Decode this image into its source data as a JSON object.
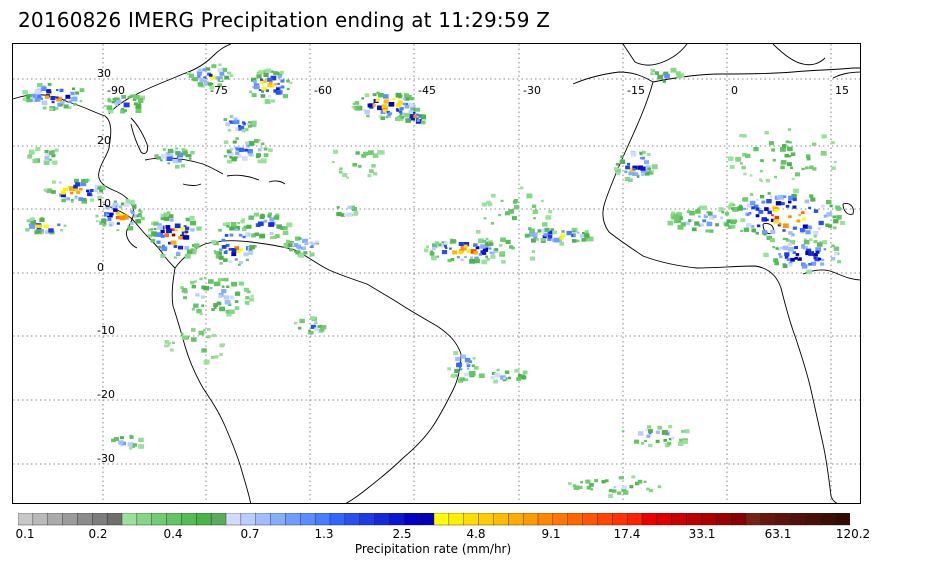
{
  "title": "20160826 IMERG Precipitation ending at 11:29:59 Z",
  "map": {
    "lon_ticks": [
      "-90",
      "-75",
      "-60",
      "-45",
      "-30",
      "-15",
      "0",
      "15"
    ],
    "lat_ticks": [
      "30",
      "20",
      "10",
      "0",
      "-10",
      "-20",
      "-30"
    ],
    "grid_style": "dotted"
  },
  "colorbar": {
    "label": "Precipitation rate (mm/hr)",
    "tick_labels": [
      "0.1",
      "0.2",
      "0.4",
      "0.7",
      "1.3",
      "2.5",
      "4.8",
      "9.1",
      "17.4",
      "33.1",
      "63.1",
      "120.2"
    ],
    "colors": [
      "#c8c8c8",
      "#b9b9b9",
      "#aaaaaa",
      "#9b9b9b",
      "#8c8c8c",
      "#7d7d7d",
      "#6e6e6e",
      "#9be09b",
      "#85d685",
      "#6fcc6f",
      "#62c462",
      "#55bc55",
      "#48b448",
      "#5aac5a",
      "#d2dcff",
      "#b9cdff",
      "#a0bdff",
      "#87adff",
      "#6e9dff",
      "#5a8dff",
      "#467dff",
      "#3264ff",
      "#2850f0",
      "#1e3ce6",
      "#1428dc",
      "#0a14d2",
      "#0000c8",
      "#0000b4",
      "#ffff00",
      "#ffee00",
      "#ffdd00",
      "#ffcc00",
      "#ffbb00",
      "#ffaa00",
      "#ff9900",
      "#ff8800",
      "#ff7700",
      "#ff6600",
      "#ff5500",
      "#ff4400",
      "#ff3300",
      "#ff2200",
      "#ee0000",
      "#dd0000",
      "#cc0000",
      "#bb0000",
      "#aa0000",
      "#990000",
      "#880000",
      "#772211",
      "#66180c",
      "#5a140a",
      "#501208",
      "#461006",
      "#3c0e04",
      "#320c02"
    ]
  }
}
